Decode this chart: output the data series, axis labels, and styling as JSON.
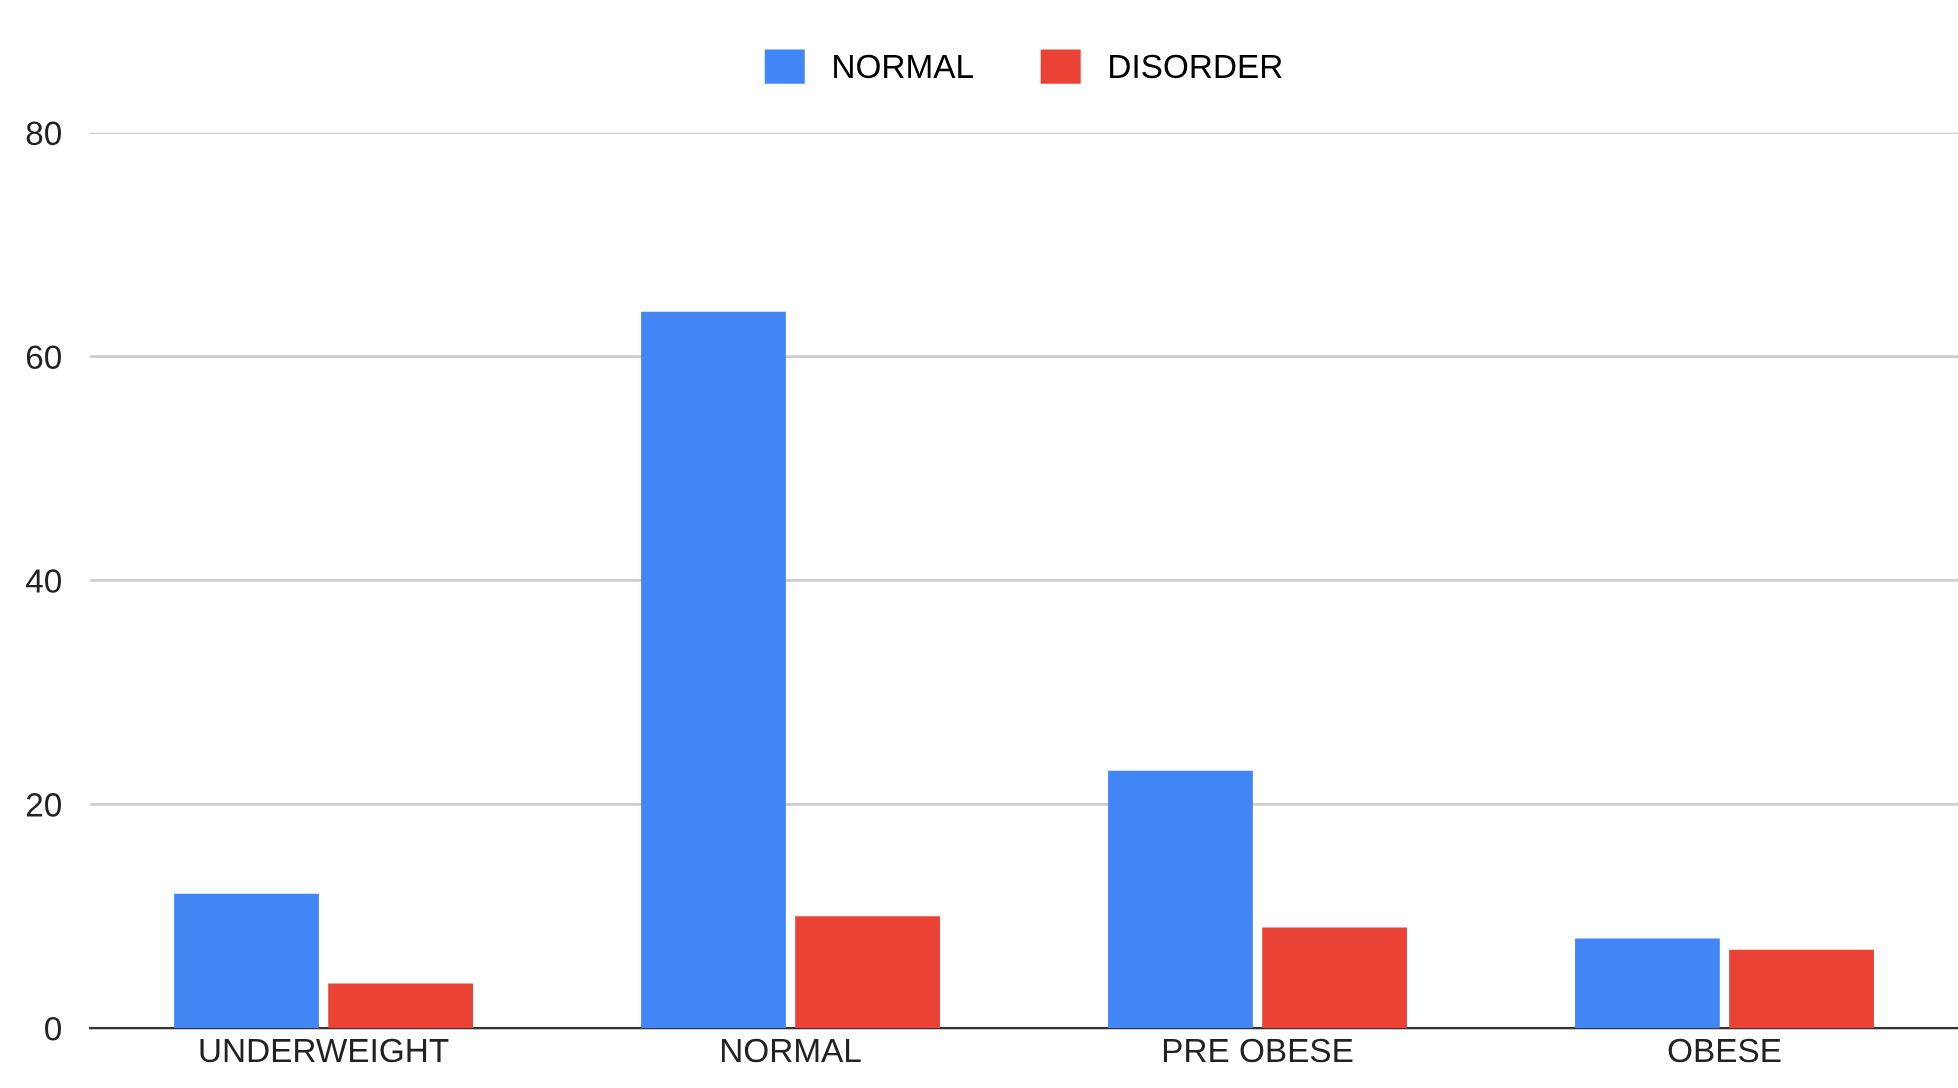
{
  "chart_data": {
    "type": "bar",
    "categories": [
      "UNDERWEIGHT",
      "NORMAL",
      "PRE OBESE",
      "OBESE"
    ],
    "series": [
      {
        "name": "NORMAL",
        "color": "#4285f4",
        "values": [
          12,
          64,
          23,
          8
        ]
      },
      {
        "name": "DISORDER",
        "color": "#ea4335",
        "values": [
          4,
          10,
          9,
          7
        ]
      }
    ],
    "ylim": [
      0,
      80
    ],
    "yticks": [
      0,
      20,
      40,
      60,
      80
    ],
    "grid": "y",
    "legend": "top"
  }
}
